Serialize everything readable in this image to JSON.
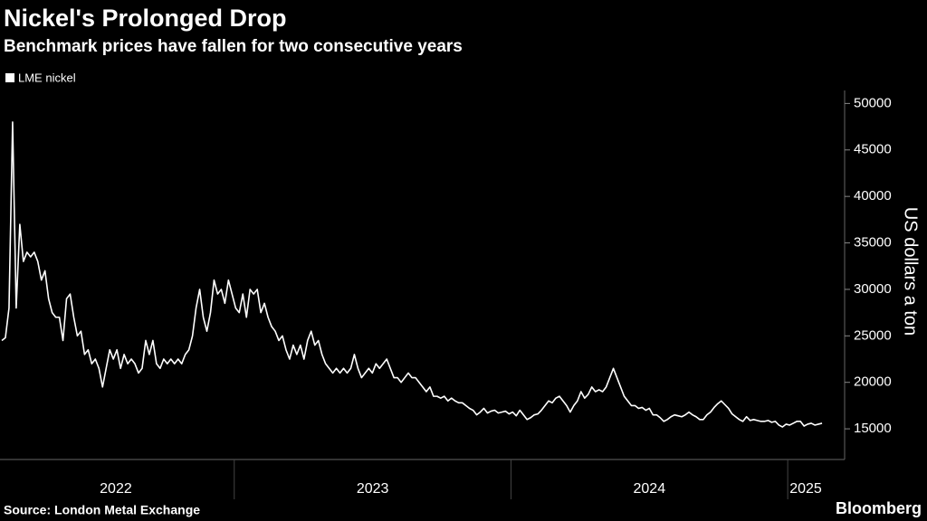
{
  "chart_data": {
    "type": "line",
    "title": "Nickel's Prolonged Drop",
    "subtitle": "Benchmark prices have fallen for two consecutive years",
    "y_label": "US dollars a ton",
    "source": "Source: London Metal Exchange",
    "brand": "Bloomberg",
    "y_axis_side": "right",
    "grid": false,
    "xlim": [
      2022.16,
      2025.15
    ],
    "xticks": [
      {
        "value": 2022.572,
        "label": "2022"
      },
      {
        "value": 2023.5,
        "label": "2023"
      },
      {
        "value": 2024.5,
        "label": "2024"
      },
      {
        "value": 2025.065,
        "label": "2025"
      }
    ],
    "x_dividers": [
      2023,
      2024,
      2025
    ],
    "ylim": [
      11700,
      51400
    ],
    "yticks": [
      15000,
      20000,
      25000,
      30000,
      35000,
      40000,
      45000,
      50000
    ],
    "x": [
      2022.16,
      2022.173,
      2022.186,
      2022.199,
      2022.212,
      2022.225,
      2022.238,
      2022.251,
      2022.264,
      2022.277,
      2022.29,
      2022.303,
      2022.316,
      2022.329,
      2022.342,
      2022.355,
      2022.368,
      2022.381,
      2022.394,
      2022.407,
      2022.42,
      2022.433,
      2022.446,
      2022.459,
      2022.472,
      2022.485,
      2022.498,
      2022.511,
      2022.524,
      2022.537,
      2022.55,
      2022.563,
      2022.576,
      2022.589,
      2022.602,
      2022.615,
      2022.628,
      2022.641,
      2022.654,
      2022.667,
      2022.68,
      2022.693,
      2022.706,
      2022.719,
      2022.732,
      2022.745,
      2022.758,
      2022.771,
      2022.784,
      2022.797,
      2022.81,
      2022.823,
      2022.836,
      2022.849,
      2022.862,
      2022.875,
      2022.888,
      2022.901,
      2022.914,
      2022.927,
      2022.94,
      2022.953,
      2022.966,
      2022.979,
      2022.992,
      2023.005,
      2023.018,
      2023.031,
      2023.044,
      2023.057,
      2023.07,
      2023.083,
      2023.096,
      2023.109,
      2023.122,
      2023.135,
      2023.148,
      2023.161,
      2023.174,
      2023.187,
      2023.2,
      2023.213,
      2023.226,
      2023.239,
      2023.252,
      2023.265,
      2023.278,
      2023.291,
      2023.304,
      2023.317,
      2023.33,
      2023.343,
      2023.356,
      2023.369,
      2023.382,
      2023.395,
      2023.408,
      2023.421,
      2023.434,
      2023.447,
      2023.46,
      2023.473,
      2023.486,
      2023.499,
      2023.512,
      2023.525,
      2023.538,
      2023.551,
      2023.564,
      2023.577,
      2023.59,
      2023.603,
      2023.616,
      2023.629,
      2023.642,
      2023.655,
      2023.668,
      2023.681,
      2023.694,
      2023.707,
      2023.72,
      2023.733,
      2023.746,
      2023.759,
      2023.772,
      2023.785,
      2023.798,
      2023.811,
      2023.824,
      2023.837,
      2023.85,
      2023.863,
      2023.876,
      2023.889,
      2023.902,
      2023.915,
      2023.928,
      2023.941,
      2023.954,
      2023.967,
      2023.98,
      2023.993,
      2024.006,
      2024.019,
      2024.032,
      2024.045,
      2024.058,
      2024.071,
      2024.084,
      2024.097,
      2024.11,
      2024.123,
      2024.136,
      2024.149,
      2024.162,
      2024.175,
      2024.188,
      2024.201,
      2024.214,
      2024.227,
      2024.24,
      2024.253,
      2024.266,
      2024.279,
      2024.292,
      2024.305,
      2024.318,
      2024.331,
      2024.344,
      2024.357,
      2024.37,
      2024.383,
      2024.396,
      2024.409,
      2024.422,
      2024.435,
      2024.448,
      2024.461,
      2024.474,
      2024.487,
      2024.5,
      2024.513,
      2024.526,
      2024.539,
      2024.552,
      2024.565,
      2024.578,
      2024.591,
      2024.604,
      2024.617,
      2024.63,
      2024.643,
      2024.656,
      2024.669,
      2024.682,
      2024.695,
      2024.708,
      2024.721,
      2024.734,
      2024.747,
      2024.76,
      2024.773,
      2024.786,
      2024.799,
      2024.812,
      2024.825,
      2024.838,
      2024.851,
      2024.864,
      2024.877,
      2024.89,
      2024.903,
      2024.916,
      2024.929,
      2024.942,
      2024.955,
      2024.968,
      2024.981,
      2024.994,
      2025.007,
      2025.02,
      2025.033,
      2025.046,
      2025.059,
      2025.072,
      2025.085,
      2025.098,
      2025.111,
      2025.124
    ],
    "series": [
      {
        "name": "LME nickel",
        "color": "#ffffff",
        "values": [
          24500,
          24800,
          28000,
          48000,
          28000,
          37000,
          33000,
          34000,
          33500,
          34000,
          33000,
          31000,
          32000,
          29000,
          27500,
          27000,
          27000,
          24500,
          29000,
          29500,
          27000,
          25000,
          25500,
          23000,
          23500,
          22000,
          22500,
          21500,
          19500,
          21500,
          23500,
          22500,
          23500,
          21500,
          23000,
          22000,
          22500,
          22000,
          21000,
          21500,
          24500,
          23000,
          24500,
          22000,
          21500,
          22500,
          22000,
          22500,
          22000,
          22500,
          22000,
          23000,
          23500,
          25000,
          28000,
          30000,
          27000,
          25500,
          27500,
          31000,
          29500,
          30000,
          28500,
          31000,
          29500,
          28000,
          27500,
          29500,
          27000,
          30000,
          29500,
          30000,
          27500,
          28500,
          27000,
          26000,
          25500,
          24500,
          25000,
          23500,
          22500,
          24000,
          23000,
          24000,
          22500,
          24500,
          25500,
          24000,
          24500,
          23000,
          22000,
          21500,
          21000,
          21500,
          21000,
          21500,
          21000,
          21500,
          23000,
          21500,
          20500,
          21000,
          21500,
          21000,
          22000,
          21500,
          22000,
          22500,
          21500,
          20500,
          20500,
          20000,
          20500,
          21000,
          20500,
          20500,
          20000,
          19500,
          19000,
          19500,
          18500,
          18500,
          18300,
          18500,
          18000,
          18300,
          18000,
          17800,
          17800,
          17500,
          17200,
          17000,
          16500,
          16800,
          17200,
          16700,
          16900,
          17000,
          16700,
          16800,
          16900,
          16600,
          16800,
          16400,
          17000,
          16500,
          16000,
          16200,
          16500,
          16600,
          17000,
          17500,
          18000,
          17800,
          18300,
          18500,
          18000,
          17500,
          16800,
          17500,
          18000,
          19000,
          18300,
          18700,
          19500,
          19000,
          19200,
          19000,
          19500,
          20500,
          21500,
          20500,
          19500,
          18500,
          18000,
          17500,
          17500,
          17200,
          17300,
          17000,
          17200,
          16500,
          16500,
          16200,
          15800,
          16000,
          16300,
          16500,
          16400,
          16300,
          16500,
          16800,
          16500,
          16300,
          16000,
          16000,
          16500,
          16800,
          17300,
          17700,
          18000,
          17600,
          17200,
          16600,
          16300,
          16000,
          15800,
          16300,
          15900,
          16000,
          15900,
          15800,
          15800,
          15900,
          15700,
          15800,
          15400,
          15200,
          15500,
          15400,
          15600,
          15800,
          15800,
          15300,
          15500,
          15600,
          15400,
          15500,
          15600
        ]
      }
    ]
  }
}
